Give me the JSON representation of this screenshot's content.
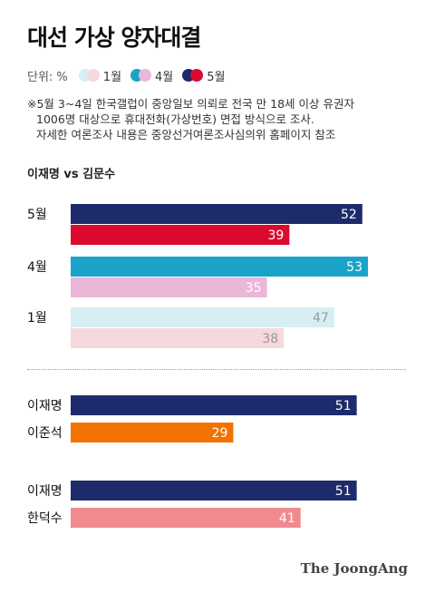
{
  "title": "대선 가상 양자대결",
  "legend": {
    "unit": "단위: %",
    "items": [
      {
        "label": "1월",
        "colors": [
          "#d6eef4",
          "#f7d8dc"
        ]
      },
      {
        "label": "4월",
        "colors": [
          "#1aa3c9",
          "#e9b7d8"
        ]
      },
      {
        "label": "5월",
        "colors": [
          "#1d2a6b",
          "#dc0a2f"
        ]
      }
    ]
  },
  "note": {
    "line1": "※5월 3~4일 한국갤럽이 중앙일보 의뢰로 전국 만 18세 이상 유권자",
    "line2": "1006명 대상으로 휴대전화(가상번호) 면접 방식으로 조사.",
    "line3": "자세한 여론조사 내용은 중앙선거여론조사심의위 홈페이지 참조"
  },
  "subtitle": "이재명 vs 김문수",
  "brand": "The JoongAng",
  "chart_data": {
    "type": "bar",
    "orientation": "horizontal",
    "unit": "%",
    "xlim": [
      0,
      60
    ],
    "groups": [
      {
        "label": "5월",
        "bars": [
          {
            "value": 52,
            "color": "#1d2a6b",
            "text_color": "#ffffff"
          },
          {
            "value": 39,
            "color": "#dc0a2f",
            "text_color": "#ffffff"
          }
        ]
      },
      {
        "label": "4월",
        "bars": [
          {
            "value": 53,
            "color": "#1aa3c9",
            "text_color": "#ffffff"
          },
          {
            "value": 35,
            "color": "#e9b7d8",
            "text_color": "#ffffff"
          }
        ]
      },
      {
        "label": "1월",
        "bars": [
          {
            "value": 47,
            "color": "#d6eef4",
            "text_color": "#999999"
          },
          {
            "value": 38,
            "color": "#f7d8dc",
            "text_color": "#999999"
          }
        ]
      }
    ],
    "matchups": [
      {
        "bars": [
          {
            "label": "이재명",
            "value": 51,
            "color": "#1d2a6b",
            "text_color": "#ffffff"
          },
          {
            "label": "이준석",
            "value": 29,
            "color": "#f27200",
            "text_color": "#ffffff"
          }
        ]
      },
      {
        "bars": [
          {
            "label": "이재명",
            "value": 51,
            "color": "#1d2a6b",
            "text_color": "#ffffff"
          },
          {
            "label": "한덕수",
            "value": 41,
            "color": "#f08a8e",
            "text_color": "#ffffff"
          }
        ]
      }
    ]
  }
}
